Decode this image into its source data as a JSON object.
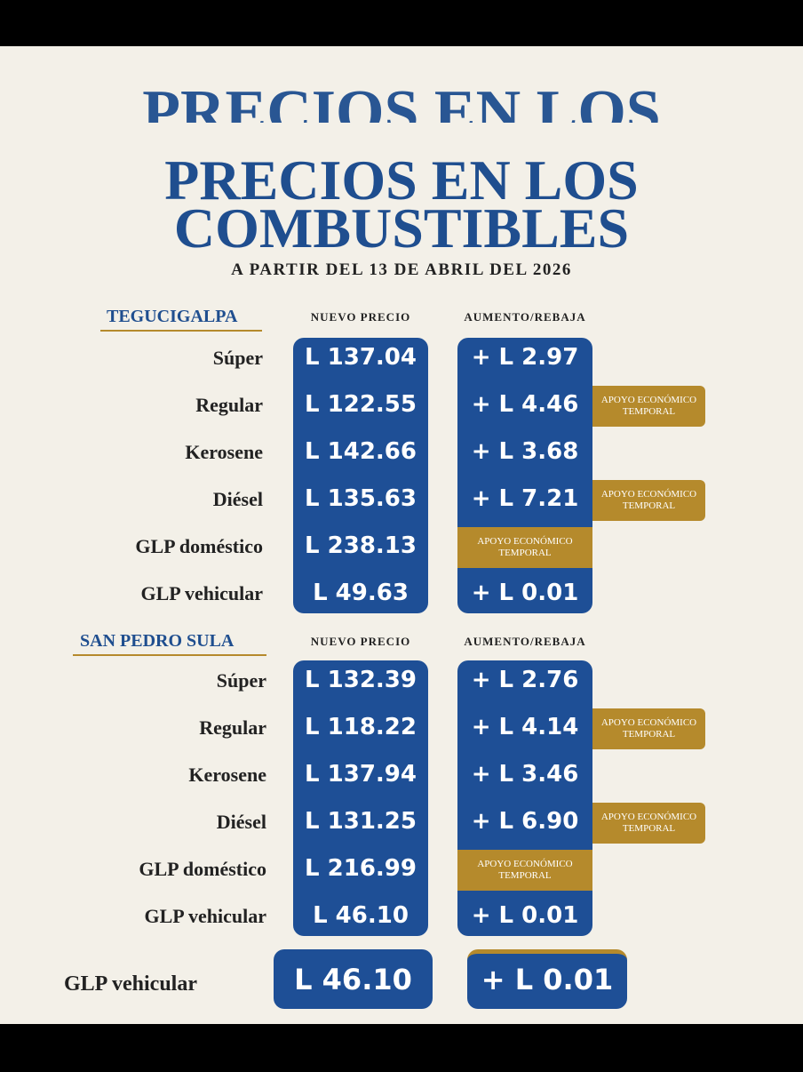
{
  "header": {
    "ghost_title": "PRECIOS EN LOS",
    "title_line1": "PRECIOS EN LOS",
    "title_line2": "COMBUSTIBLES",
    "subtitle": "A PARTIR DEL 13 DE ABRIL DEL 2026"
  },
  "sections": [
    {
      "city": "TEGUCIGALPA",
      "col_price": "NUEVO PRECIO",
      "col_change": "AUMENTO/REBAJA",
      "rows": [
        {
          "fuel": "Súper",
          "price": "L 137.04",
          "change": "+ L 2.97"
        },
        {
          "fuel": "Regular",
          "price": "L 122.55",
          "change": "+ L 4.46",
          "tag": "APOYO ECONÓMICO TEMPORAL"
        },
        {
          "fuel": "Kerosene",
          "price": "L 142.66",
          "change": "+ L 3.68"
        },
        {
          "fuel": "Diésel",
          "price": "L 135.63",
          "change": "+ L 7.21",
          "tag": "APOYO ECONÓMICO TEMPORAL"
        },
        {
          "fuel": "GLP doméstico",
          "price": "L 238.13",
          "change_note": "APOYO ECONÓMICO TEMPORAL"
        },
        {
          "fuel": "GLP vehicular",
          "price": "L 49.63",
          "change": "+ L 0.01"
        }
      ]
    },
    {
      "city": "SAN PEDRO SULA",
      "col_price": "NUEVO PRECIO",
      "col_change": "AUMENTO/REBAJA",
      "rows": [
        {
          "fuel": "Súper",
          "price": "L 132.39",
          "change": "+ L 2.76"
        },
        {
          "fuel": "Regular",
          "price": "L 118.22",
          "change": "+ L 4.14",
          "tag": "APOYO ECONÓMICO TEMPORAL"
        },
        {
          "fuel": "Kerosene",
          "price": "L 137.94",
          "change": "+ L 3.46"
        },
        {
          "fuel": "Diésel",
          "price": "L 131.25",
          "change": "+ L 6.90",
          "tag": "APOYO ECONÓMICO TEMPORAL"
        },
        {
          "fuel": "GLP doméstico",
          "price": "L 216.99",
          "change_note": "APOYO ECONÓMICO TEMPORAL"
        },
        {
          "fuel": "GLP vehicular",
          "price": "L 46.10",
          "change": "+ L 0.01"
        }
      ]
    }
  ],
  "ghost_row": {
    "fuel": "GLP vehicular",
    "price": "L 46.10",
    "change": "+ L 0.01"
  }
}
